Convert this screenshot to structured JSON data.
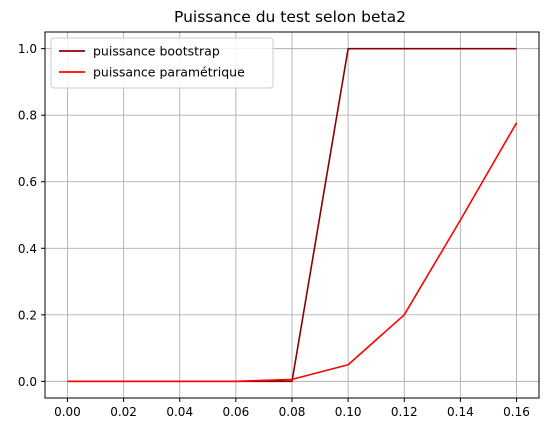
{
  "chart_data": {
    "type": "line",
    "title": "Puissance du test selon beta2",
    "xlabel": "",
    "ylabel": "",
    "x": [
      0.0,
      0.02,
      0.04,
      0.06,
      0.08,
      0.1,
      0.12,
      0.14,
      0.16
    ],
    "series": [
      {
        "name": "puissance bootstrap",
        "color": "#8b0000",
        "values": [
          0.0,
          0.0,
          0.0,
          0.0,
          0.0,
          1.0,
          1.0,
          1.0,
          1.0
        ]
      },
      {
        "name": "puissance paramétrique",
        "color": "#ff0000",
        "values": [
          0.0,
          0.0,
          0.0,
          0.0,
          0.006,
          0.05,
          0.2,
          0.485,
          0.777
        ]
      }
    ],
    "xlim": [
      -0.008,
      0.168
    ],
    "ylim": [
      -0.05,
      1.05
    ],
    "xticks": [
      "0.00",
      "0.02",
      "0.04",
      "0.06",
      "0.08",
      "0.10",
      "0.12",
      "0.14",
      "0.16"
    ],
    "yticks": [
      "0.0",
      "0.2",
      "0.4",
      "0.6",
      "0.8",
      "1.0"
    ],
    "grid": true,
    "legend_position": "top-left"
  }
}
